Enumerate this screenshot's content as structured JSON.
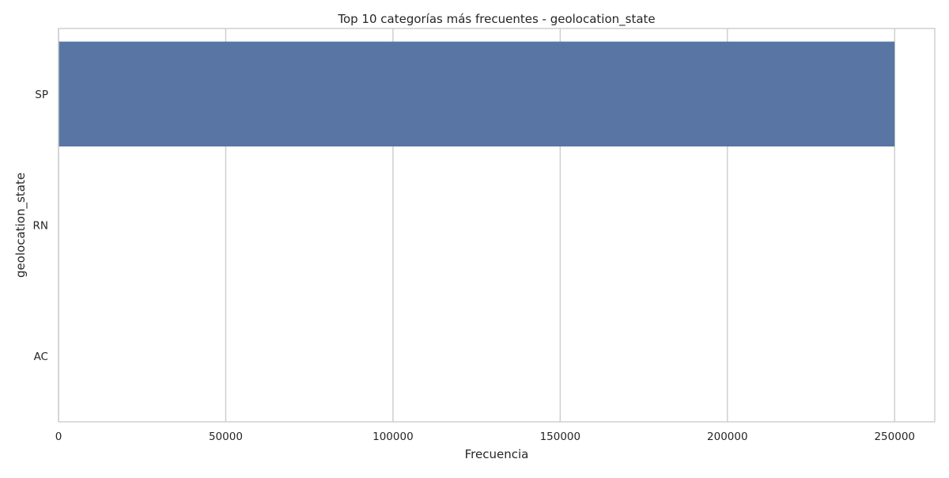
{
  "chart_data": {
    "type": "bar",
    "orientation": "horizontal",
    "title": "Top 10 categorías más frecuentes - geolocation_state",
    "xlabel": "Frecuencia",
    "ylabel": "geolocation_state",
    "categories": [
      "SP",
      "RN",
      "AC"
    ],
    "values": [
      250000,
      1,
      1
    ],
    "xlim": [
      0,
      262000
    ],
    "xticks": [
      0,
      50000,
      100000,
      150000,
      200000,
      250000
    ],
    "xtick_labels": [
      "0",
      "50000",
      "100000",
      "150000",
      "200000",
      "250000"
    ],
    "grid": true,
    "legend": "none",
    "bar_color": "#5875a4",
    "grid_color": "#cccccc",
    "spine_color": "#cccccc"
  }
}
